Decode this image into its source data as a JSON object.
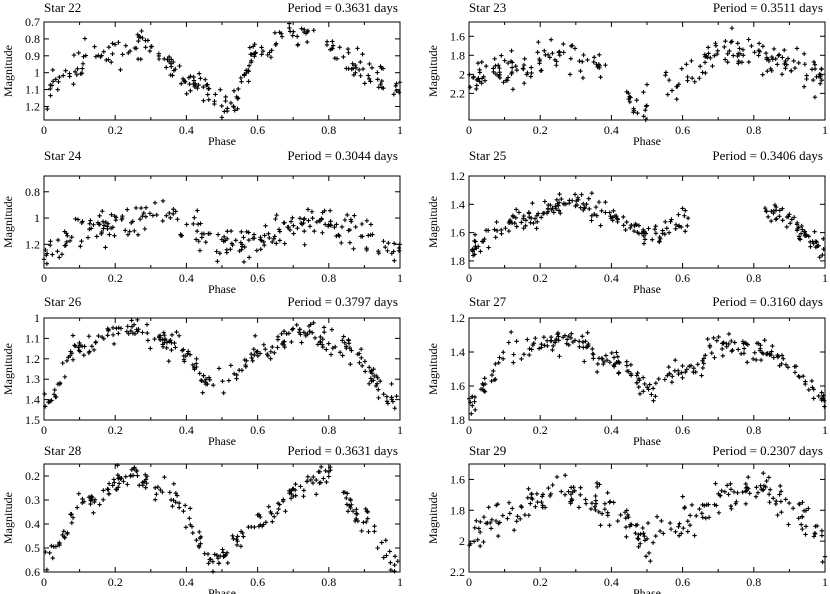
{
  "figure": {
    "xlabel": "Phase",
    "ylabel": "Magnitude"
  },
  "chart_data": [
    {
      "type": "scatter",
      "star": "Star 22",
      "period_label": "Period = 0.3631 days",
      "xlabel": "Phase",
      "ylabel": "Magnitude",
      "xlim": [
        0,
        1
      ],
      "ylim": [
        1.28,
        0.7
      ],
      "y_inverted": true,
      "x_ticks": [
        0,
        0.2,
        0.4,
        0.6,
        0.8,
        1
      ],
      "x_tick_labels": [
        "0",
        "0.2",
        "0.4",
        "0.6",
        "0.8",
        "1"
      ],
      "y_ticks": [
        0.7,
        0.8,
        0.9,
        1.0,
        1.1,
        1.2
      ],
      "y_tick_labels": [
        "0.7",
        "0.8",
        "0.9",
        "1",
        "1.1",
        "1.2"
      ],
      "curve": [
        [
          0,
          1.1
        ],
        [
          0.15,
          0.9
        ],
        [
          0.28,
          0.83
        ],
        [
          0.42,
          1.05
        ],
        [
          0.52,
          1.2
        ],
        [
          0.6,
          0.9
        ],
        [
          0.7,
          0.74
        ],
        [
          0.78,
          0.82
        ],
        [
          0.9,
          0.98
        ],
        [
          1.0,
          1.1
        ]
      ],
      "gaps": [
        [
          0.76,
          0.79
        ]
      ],
      "scatter": 0.045,
      "n_points": 230
    },
    {
      "type": "scatter",
      "star": "Star 23",
      "period_label": "Period = 0.3511 days",
      "xlabel": "Phase",
      "ylabel": "Magnitude",
      "xlim": [
        0,
        1
      ],
      "ylim": [
        2.48,
        1.45
      ],
      "y_inverted": true,
      "x_ticks": [
        0,
        0.2,
        0.4,
        0.6,
        0.8,
        1
      ],
      "x_tick_labels": [
        "0",
        "0.2",
        "0.4",
        "0.6",
        "0.8",
        "1"
      ],
      "y_ticks": [
        1.6,
        1.8,
        2.0,
        2.2
      ],
      "y_tick_labels": [
        "1.6",
        "1.8",
        "2",
        "2.2"
      ],
      "curve": [
        [
          0,
          2.05
        ],
        [
          0.15,
          1.9
        ],
        [
          0.25,
          1.8
        ],
        [
          0.38,
          1.9
        ],
        [
          0.42,
          2.2
        ],
        [
          0.48,
          2.35
        ],
        [
          0.55,
          2.1
        ],
        [
          0.65,
          1.9
        ],
        [
          0.75,
          1.75
        ],
        [
          0.85,
          1.82
        ],
        [
          1.0,
          2.05
        ]
      ],
      "gaps": [
        [
          0.39,
          0.44
        ],
        [
          0.5,
          0.55
        ]
      ],
      "scatter": 0.08,
      "n_points": 230
    },
    {
      "type": "scatter",
      "star": "Star 24",
      "period_label": "Period = 0.3044 days",
      "xlabel": "Phase",
      "ylabel": "Magnitude",
      "xlim": [
        0,
        1
      ],
      "ylim": [
        1.38,
        0.68
      ],
      "y_inverted": true,
      "x_ticks": [
        0,
        0.2,
        0.4,
        0.6,
        0.8,
        1
      ],
      "x_tick_labels": [
        "0",
        "0.2",
        "0.4",
        "0.6",
        "0.8",
        "1"
      ],
      "y_ticks": [
        0.8,
        1.0,
        1.2
      ],
      "y_tick_labels": [
        "0.8",
        "1",
        "1.2"
      ],
      "curve": [
        [
          0,
          1.3
        ],
        [
          0.1,
          1.1
        ],
        [
          0.25,
          1.05
        ],
        [
          0.35,
          0.92
        ],
        [
          0.4,
          1.05
        ],
        [
          0.5,
          1.18
        ],
        [
          0.6,
          1.15
        ],
        [
          0.75,
          1.03
        ],
        [
          0.85,
          1.05
        ],
        [
          1.0,
          1.25
        ]
      ],
      "gaps": [],
      "scatter": 0.07,
      "n_points": 240
    },
    {
      "type": "scatter",
      "star": "Star 25",
      "period_label": "Period = 0.3406 days",
      "xlabel": "Phase",
      "ylabel": "Magnitude",
      "xlim": [
        0,
        1
      ],
      "ylim": [
        1.85,
        1.2
      ],
      "y_inverted": true,
      "x_ticks": [
        0,
        0.2,
        0.4,
        0.6,
        0.8,
        1
      ],
      "x_tick_labels": [
        "0",
        "0.2",
        "0.4",
        "0.6",
        "0.8",
        "1"
      ],
      "y_ticks": [
        1.2,
        1.4,
        1.6,
        1.8
      ],
      "y_tick_labels": [
        "1.2",
        "1.4",
        "1.6",
        "1.8"
      ],
      "curve": [
        [
          0,
          1.7
        ],
        [
          0.15,
          1.5
        ],
        [
          0.28,
          1.38
        ],
        [
          0.4,
          1.48
        ],
        [
          0.52,
          1.62
        ],
        [
          0.6,
          1.5
        ],
        [
          0.85,
          1.45
        ],
        [
          1.0,
          1.7
        ]
      ],
      "gaps": [
        [
          0.62,
          0.83
        ]
      ],
      "scatter": 0.04,
      "n_points": 230
    },
    {
      "type": "scatter",
      "star": "Star 26",
      "period_label": "Period = 0.3797 days",
      "xlabel": "Phase",
      "ylabel": "Magnitude",
      "xlim": [
        0,
        1
      ],
      "ylim": [
        1.5,
        1.0
      ],
      "y_inverted": true,
      "x_ticks": [
        0,
        0.2,
        0.4,
        0.6,
        0.8,
        1
      ],
      "x_tick_labels": [
        "0",
        "0.2",
        "0.4",
        "0.6",
        "0.8",
        "1"
      ],
      "y_ticks": [
        1.0,
        1.1,
        1.2,
        1.3,
        1.4,
        1.5
      ],
      "y_tick_labels": [
        "1",
        "1.1",
        "1.2",
        "1.3",
        "1.4",
        "1.5"
      ],
      "curve": [
        [
          0,
          1.42
        ],
        [
          0.1,
          1.15
        ],
        [
          0.22,
          1.05
        ],
        [
          0.35,
          1.12
        ],
        [
          0.48,
          1.32
        ],
        [
          0.6,
          1.18
        ],
        [
          0.72,
          1.05
        ],
        [
          0.85,
          1.15
        ],
        [
          1.0,
          1.42
        ]
      ],
      "gaps": [],
      "scatter": 0.03,
      "n_points": 250
    },
    {
      "type": "scatter",
      "star": "Star 27",
      "period_label": "Period = 0.3160 days",
      "xlabel": "Phase",
      "ylabel": "Magnitude",
      "xlim": [
        0,
        1
      ],
      "ylim": [
        1.8,
        1.2
      ],
      "y_inverted": true,
      "x_ticks": [
        0,
        0.2,
        0.4,
        0.6,
        0.8,
        1
      ],
      "x_tick_labels": [
        "0",
        "0.2",
        "0.4",
        "0.6",
        "0.8",
        "1"
      ],
      "y_ticks": [
        1.2,
        1.4,
        1.6,
        1.8
      ],
      "y_tick_labels": [
        "1.2",
        "1.4",
        "1.6",
        "1.8"
      ],
      "curve": [
        [
          0,
          1.7
        ],
        [
          0.12,
          1.4
        ],
        [
          0.28,
          1.32
        ],
        [
          0.4,
          1.45
        ],
        [
          0.52,
          1.62
        ],
        [
          0.6,
          1.5
        ],
        [
          0.72,
          1.35
        ],
        [
          0.85,
          1.4
        ],
        [
          1.0,
          1.65
        ]
      ],
      "gaps": [],
      "scatter": 0.035,
      "n_points": 250
    },
    {
      "type": "scatter",
      "star": "Star 28",
      "period_label": "Period = 0.3631 days",
      "xlabel": "Phase",
      "ylabel": "Magnitude",
      "xlim": [
        0,
        1
      ],
      "ylim": [
        0.6,
        0.15
      ],
      "y_inverted": true,
      "x_ticks": [
        0,
        0.2,
        0.4,
        0.6,
        0.8,
        1
      ],
      "x_tick_labels": [
        "0",
        "0.2",
        "0.4",
        "0.6",
        "0.8",
        "1"
      ],
      "y_ticks": [
        0.2,
        0.3,
        0.4,
        0.5,
        0.6
      ],
      "y_tick_labels": [
        "0.2",
        "0.3",
        "0.4",
        "0.5",
        "0.6"
      ],
      "curve": [
        [
          0,
          0.55
        ],
        [
          0.12,
          0.3
        ],
        [
          0.25,
          0.2
        ],
        [
          0.35,
          0.28
        ],
        [
          0.48,
          0.55
        ],
        [
          0.6,
          0.4
        ],
        [
          0.72,
          0.25
        ],
        [
          0.8,
          0.2
        ],
        [
          0.9,
          0.38
        ],
        [
          1.0,
          0.58
        ]
      ],
      "gaps": [
        [
          0.81,
          0.84
        ]
      ],
      "scatter": 0.025,
      "n_points": 240
    },
    {
      "type": "scatter",
      "star": "Star 29",
      "period_label": "Period = 0.2307 days",
      "xlabel": "Phase",
      "ylabel": "Magnitude",
      "xlim": [
        0,
        1
      ],
      "ylim": [
        2.2,
        1.5
      ],
      "y_inverted": true,
      "x_ticks": [
        0,
        0.2,
        0.4,
        0.6,
        0.8,
        1
      ],
      "x_tick_labels": [
        "0",
        "0.2",
        "0.4",
        "0.6",
        "0.8",
        "1"
      ],
      "y_ticks": [
        1.6,
        1.8,
        2.0,
        2.2
      ],
      "y_tick_labels": [
        "1.6",
        "1.8",
        "2",
        "2.2"
      ],
      "curve": [
        [
          0,
          1.98
        ],
        [
          0.12,
          1.82
        ],
        [
          0.25,
          1.68
        ],
        [
          0.38,
          1.75
        ],
        [
          0.5,
          1.98
        ],
        [
          0.6,
          1.88
        ],
        [
          0.72,
          1.72
        ],
        [
          0.82,
          1.65
        ],
        [
          0.9,
          1.75
        ],
        [
          1.0,
          1.98
        ]
      ],
      "gaps": [],
      "scatter": 0.06,
      "n_points": 240
    }
  ]
}
